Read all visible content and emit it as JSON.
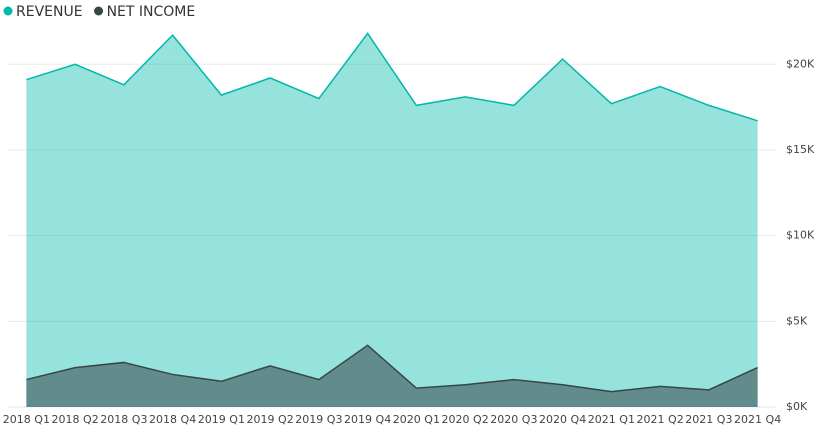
{
  "chart_data": {
    "type": "area",
    "categories": [
      "2018 Q1",
      "2018 Q2",
      "2018 Q3",
      "2018 Q4",
      "2019 Q1",
      "2019 Q2",
      "2019 Q3",
      "2019 Q4",
      "2020 Q1",
      "2020 Q2",
      "2020 Q3",
      "2020 Q4",
      "2021 Q1",
      "2021 Q2",
      "2021 Q3",
      "2021 Q4"
    ],
    "series": [
      {
        "name": "REVENUE",
        "color": "#01b8aa",
        "values": [
          19100,
          20000,
          18800,
          21700,
          18200,
          19200,
          18000,
          21800,
          17600,
          18100,
          17600,
          20300,
          17700,
          18700,
          17600,
          16700
        ]
      },
      {
        "name": "NET INCOME",
        "color": "#374649",
        "values": [
          1600,
          2300,
          2600,
          1900,
          1500,
          2400,
          1600,
          3600,
          1100,
          1300,
          1600,
          1300,
          900,
          1200,
          1000,
          2300
        ]
      }
    ],
    "ylim": [
      0,
      22000
    ],
    "yticks": [
      {
        "value": 0,
        "label": "$0K"
      },
      {
        "value": 5000,
        "label": "$5K"
      },
      {
        "value": 10000,
        "label": "$10K"
      },
      {
        "value": 15000,
        "label": "$15K"
      },
      {
        "value": 20000,
        "label": "$20K"
      }
    ],
    "grid": true,
    "y_axis_side": "right",
    "legend": "top-left"
  }
}
